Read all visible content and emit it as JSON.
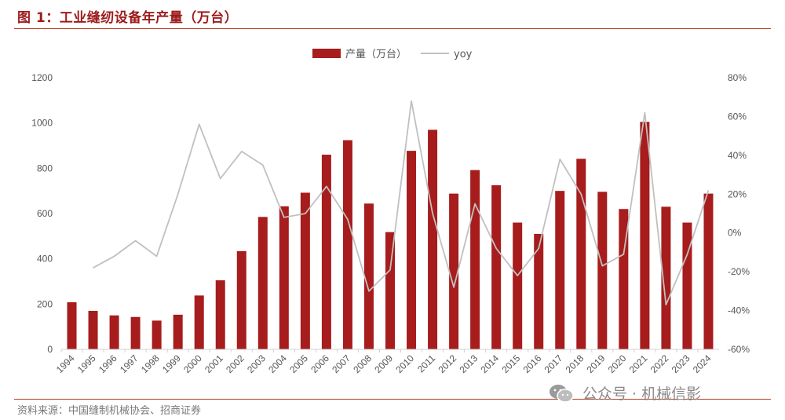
{
  "figure_title": "图 1：工业缝纫设备年产量（万台）",
  "source_text": "资料来源：中国缝制机械协会、招商证券",
  "watermark_text": "公众号 · 机械信影",
  "watermark_icon": "wechat-icon",
  "colors": {
    "bar": "#a71c1c",
    "line": "#c0c0c0",
    "accent": "#b83a1e"
  },
  "chart_data": {
    "type": "bar",
    "categories": [
      "1994",
      "1995",
      "1996",
      "1997",
      "1998",
      "1999",
      "2000",
      "2001",
      "2002",
      "2003",
      "2004",
      "2005",
      "2006",
      "2007",
      "2008",
      "2009",
      "2010",
      "2011",
      "2012",
      "2013",
      "2014",
      "2015",
      "2016",
      "2017",
      "2018",
      "2019",
      "2020",
      "2021",
      "2022",
      "2023",
      "2024"
    ],
    "series": [
      {
        "name": "产量（万台）",
        "type": "bar",
        "axis": "left",
        "values": [
          208,
          170,
          150,
          143,
          127,
          153,
          238,
          305,
          434,
          585,
          632,
          692,
          860,
          924,
          644,
          518,
          877,
          970,
          688,
          792,
          725,
          560,
          510,
          700,
          842,
          696,
          620,
          1005,
          630,
          560,
          688
        ]
      },
      {
        "name": "yoy",
        "type": "line",
        "axis": "right",
        "values": [
          null,
          -18,
          -12,
          -4,
          -12,
          20,
          56,
          28,
          42,
          35,
          8,
          10,
          24,
          7,
          -30,
          -19,
          68,
          10,
          -28,
          15,
          -8,
          -22,
          -8,
          38,
          20,
          -17,
          -11,
          62,
          -37,
          -11,
          22
        ]
      }
    ],
    "y_left": {
      "min": 0,
      "max": 1200,
      "ticks": [
        0,
        200,
        400,
        600,
        800,
        1000,
        1200
      ]
    },
    "y_right": {
      "min": -60,
      "max": 80,
      "ticks": [
        "-60%",
        "-40%",
        "-20%",
        "0%",
        "20%",
        "40%",
        "60%",
        "80%"
      ]
    },
    "legend": {
      "position": "top-center"
    },
    "grid": false
  }
}
